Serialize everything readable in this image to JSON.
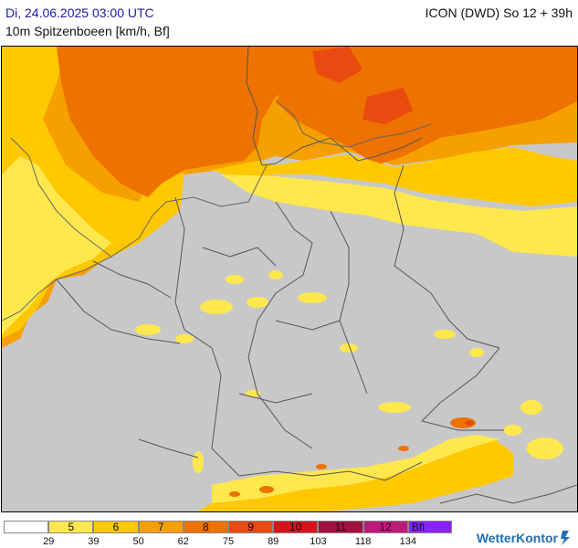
{
  "header": {
    "datetime": "Di, 24.06.2025 03:00 UTC",
    "model": "ICON (DWD) So 12 + 39h",
    "parameter": "10m Spitzenboeen [km/h, Bf]"
  },
  "colors": {
    "land": "#c8c8c8",
    "border": "#555555"
  },
  "legend": {
    "bins": [
      {
        "label": "",
        "color": "#ffffff"
      },
      {
        "label": "5",
        "color": "#ffe84d"
      },
      {
        "label": "6",
        "color": "#ffc800"
      },
      {
        "label": "7",
        "color": "#f6a000"
      },
      {
        "label": "8",
        "color": "#ee7200"
      },
      {
        "label": "9",
        "color": "#e94a10"
      },
      {
        "label": "10",
        "color": "#d8141a"
      },
      {
        "label": "11",
        "color": "#a21040"
      },
      {
        "label": "12",
        "color": "#c0187a"
      },
      {
        "label": "Bft",
        "color": "#8a22ff"
      }
    ],
    "values": [
      "29",
      "39",
      "50",
      "62",
      "75",
      "89",
      "103",
      "118",
      "134"
    ]
  },
  "brand": {
    "name": "WetterKontor",
    "logo_icon": "wetterkontor-logo-icon"
  }
}
